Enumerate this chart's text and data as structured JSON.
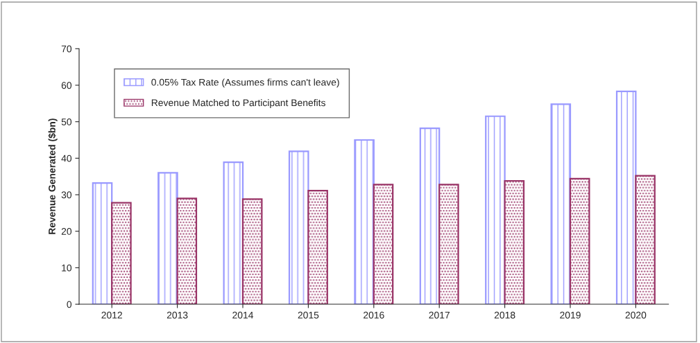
{
  "chart_data": {
    "type": "bar",
    "ylabel": "Revenue Generated ($bn)",
    "categories": [
      "2012",
      "2013",
      "2014",
      "2015",
      "2016",
      "2017",
      "2018",
      "2019",
      "2020"
    ],
    "series": [
      {
        "name": "0.05% Tax Rate (Assumes firms can't leave)",
        "color": "#9999ff",
        "values": [
          33.2,
          36,
          38.9,
          41.9,
          45,
          48.2,
          51.5,
          54.8,
          58.3
        ]
      },
      {
        "name": "Revenue Matched to Participant Benefits",
        "color": "#993366",
        "values": [
          27.8,
          29,
          28.8,
          31.1,
          32.8,
          32.8,
          33.8,
          34.4,
          35.2
        ]
      }
    ],
    "ylim": [
      0,
      70
    ],
    "yticks": [
      0,
      10,
      20,
      30,
      40,
      50,
      60,
      70
    ],
    "grid": false,
    "legend": "top left"
  }
}
